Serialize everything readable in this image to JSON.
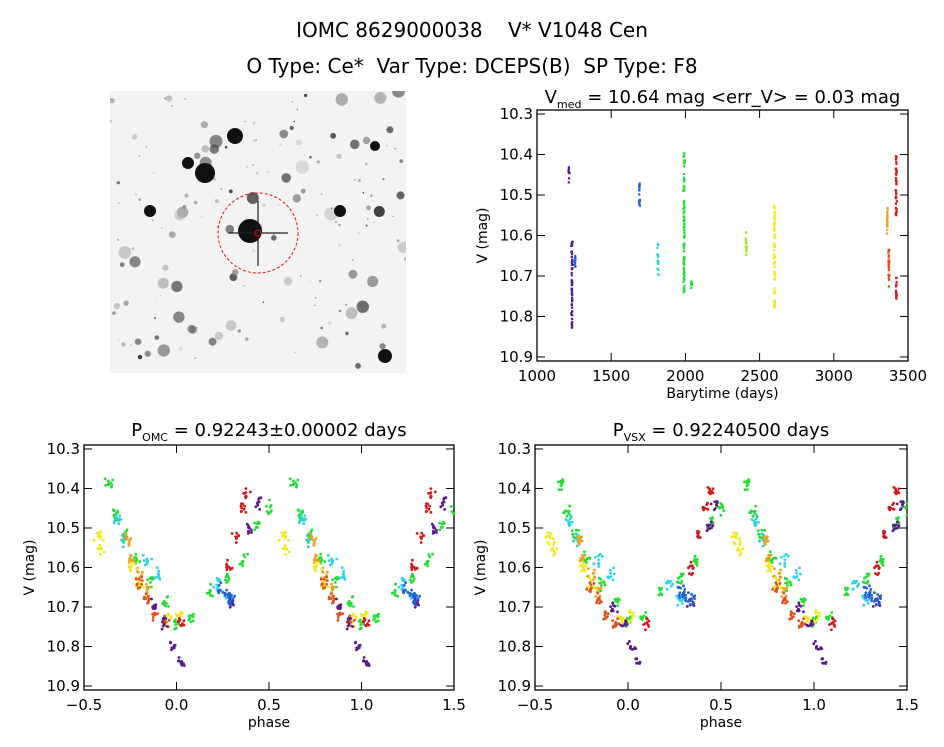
{
  "header": {
    "line1": "IOMC 8629000038    V* V1048 Cen",
    "line2": "O Type: Ce*  Var Type: DCEPS(B)  SP Type: F8"
  },
  "colors": {
    "purple": "#5a1a8c",
    "indigo": "#3a1fb0",
    "blue": "#1f5fd6",
    "cyan": "#2ad4e8",
    "green": "#22dd33",
    "yellowgreen": "#a8e62c",
    "yellow": "#f2e81c",
    "orange": "#f0a020",
    "redorange": "#e0501a",
    "red": "#d01a1a"
  },
  "chart_data": [
    {
      "type": "scatter",
      "title_main": "V",
      "title_sub": "med",
      "title_rest": " = 10.64 mag <err_V> = 0.03 mag",
      "xlabel": "Barytime (days)",
      "ylabel": "V (mag)",
      "xlim": [
        1000,
        3500
      ],
      "ylim": [
        10.91,
        10.29
      ],
      "xticks": [
        1000,
        1500,
        2000,
        2500,
        3000,
        3500
      ],
      "yticks": [
        10.3,
        10.4,
        10.5,
        10.6,
        10.7,
        10.8,
        10.9
      ],
      "series": [
        {
          "color": "purple",
          "x": 1215,
          "ymin": 10.43,
          "ymax": 10.47
        },
        {
          "color": "purple",
          "x": 1235,
          "ymin": 10.61,
          "ymax": 10.83
        },
        {
          "color": "blue",
          "x": 1255,
          "ymin": 10.64,
          "ymax": 10.68
        },
        {
          "color": "blue",
          "x": 1690,
          "ymin": 10.47,
          "ymax": 10.53
        },
        {
          "color": "cyan",
          "x": 1815,
          "ymin": 10.62,
          "ymax": 10.7
        },
        {
          "color": "green",
          "x": 1990,
          "ymin": 10.39,
          "ymax": 10.74
        },
        {
          "color": "green",
          "x": 2040,
          "ymin": 10.71,
          "ymax": 10.73
        },
        {
          "color": "yellowgreen",
          "x": 2410,
          "ymin": 10.59,
          "ymax": 10.65
        },
        {
          "color": "yellow",
          "x": 2600,
          "ymin": 10.52,
          "ymax": 10.78
        },
        {
          "color": "orange",
          "x": 3360,
          "ymin": 10.53,
          "ymax": 10.6
        },
        {
          "color": "redorange",
          "x": 3370,
          "ymin": 10.63,
          "ymax": 10.73
        },
        {
          "color": "red",
          "x": 3420,
          "ymin": 10.4,
          "ymax": 10.55
        },
        {
          "color": "red",
          "x": 3420,
          "ymin": 10.7,
          "ymax": 10.76
        }
      ]
    },
    {
      "type": "scatter",
      "title_main": "P",
      "title_sub": "OMC",
      "title_rest": " = 0.92243±0.00002 days",
      "xlabel": "phase",
      "ylabel": "V (mag)",
      "xlim": [
        -0.5,
        1.5
      ],
      "ylim": [
        10.91,
        10.29
      ],
      "xticks": [
        -0.5,
        0.0,
        0.5,
        1.0,
        1.5
      ],
      "xtick_labels": [
        "−0.5",
        "0.0",
        "0.5",
        "1.0",
        "1.5"
      ],
      "yticks": [
        10.3,
        10.4,
        10.5,
        10.6,
        10.7,
        10.8,
        10.9
      ],
      "light_curve": [
        {
          "color": "green",
          "points": [
            [
              -0.36,
              10.39
            ],
            [
              -0.33,
              10.46
            ],
            [
              -0.28,
              10.52
            ],
            [
              -0.22,
              10.58
            ],
            [
              -0.14,
              10.64
            ],
            [
              -0.06,
              10.69
            ],
            [
              0.0,
              10.74
            ],
            [
              0.08,
              10.73
            ],
            [
              0.18,
              10.66
            ],
            [
              0.28,
              10.63
            ],
            [
              0.36,
              10.58
            ],
            [
              0.44,
              10.49
            ],
            [
              0.5,
              10.45
            ]
          ]
        },
        {
          "color": "cyan",
          "points": [
            [
              -0.32,
              10.48
            ],
            [
              -0.28,
              10.53
            ],
            [
              -0.16,
              10.58
            ],
            [
              -0.1,
              10.62
            ],
            [
              0.22,
              10.64
            ],
            [
              0.28,
              10.68
            ]
          ]
        },
        {
          "color": "orange",
          "points": [
            [
              -0.26,
              10.53
            ],
            [
              -0.24,
              10.58
            ],
            [
              -0.2,
              10.62
            ],
            [
              -0.16,
              10.66
            ]
          ]
        },
        {
          "color": "yellow",
          "points": [
            [
              -0.42,
              10.52
            ],
            [
              -0.4,
              10.55
            ],
            [
              -0.24,
              10.6
            ],
            [
              -0.2,
              10.64
            ],
            [
              -0.04,
              10.73
            ],
            [
              0.02,
              10.72
            ]
          ]
        },
        {
          "color": "redorange",
          "points": [
            [
              -0.2,
              10.64
            ],
            [
              -0.16,
              10.68
            ],
            [
              -0.12,
              10.72
            ],
            [
              -0.06,
              10.74
            ]
          ]
        },
        {
          "color": "red",
          "points": [
            [
              0.28,
              10.6
            ],
            [
              0.32,
              10.52
            ],
            [
              0.36,
              10.45
            ],
            [
              0.38,
              10.41
            ],
            [
              0.02,
              10.74
            ]
          ]
        },
        {
          "color": "purple",
          "points": [
            [
              -0.12,
              10.7
            ],
            [
              -0.06,
              10.74
            ],
            [
              -0.02,
              10.8
            ],
            [
              0.02,
              10.84
            ],
            [
              0.4,
              10.5
            ],
            [
              0.44,
              10.44
            ],
            [
              0.3,
              10.69
            ]
          ]
        },
        {
          "color": "blue",
          "points": [
            [
              0.24,
              10.66
            ],
            [
              0.27,
              10.67
            ],
            [
              0.3,
              10.68
            ]
          ]
        }
      ]
    },
    {
      "type": "scatter",
      "title_main": "P",
      "title_sub": "VSX",
      "title_rest": " = 0.92240500 days",
      "xlabel": "phase",
      "ylabel": "V (mag)",
      "xlim": [
        -0.5,
        1.5
      ],
      "ylim": [
        10.91,
        10.29
      ],
      "xticks": [
        -0.5,
        0.0,
        0.5,
        1.0,
        1.5
      ],
      "xtick_labels": [
        "−0.5",
        "0.0",
        "0.5",
        "1.0",
        "1.5"
      ],
      "yticks": [
        10.3,
        10.4,
        10.5,
        10.6,
        10.7,
        10.8,
        10.9
      ],
      "light_curve": [
        {
          "color": "green",
          "points": [
            [
              -0.36,
              10.39
            ],
            [
              -0.33,
              10.46
            ],
            [
              -0.28,
              10.52
            ],
            [
              -0.22,
              10.58
            ],
            [
              -0.14,
              10.64
            ],
            [
              -0.06,
              10.69
            ],
            [
              0.0,
              10.74
            ],
            [
              0.08,
              10.73
            ],
            [
              0.18,
              10.66
            ],
            [
              0.28,
              10.63
            ],
            [
              0.36,
              10.58
            ],
            [
              0.44,
              10.49
            ],
            [
              0.5,
              10.45
            ]
          ]
        },
        {
          "color": "cyan",
          "points": [
            [
              -0.32,
              10.48
            ],
            [
              -0.28,
              10.53
            ],
            [
              -0.16,
              10.58
            ],
            [
              -0.1,
              10.62
            ],
            [
              0.22,
              10.64
            ],
            [
              0.28,
              10.68
            ]
          ]
        },
        {
          "color": "orange",
          "points": [
            [
              -0.26,
              10.53
            ],
            [
              -0.24,
              10.58
            ],
            [
              -0.2,
              10.62
            ],
            [
              -0.16,
              10.66
            ]
          ]
        },
        {
          "color": "yellow",
          "points": [
            [
              -0.42,
              10.52
            ],
            [
              -0.4,
              10.55
            ],
            [
              -0.24,
              10.6
            ],
            [
              -0.2,
              10.64
            ],
            [
              -0.04,
              10.73
            ],
            [
              0.02,
              10.72
            ]
          ]
        },
        {
          "color": "redorange",
          "points": [
            [
              -0.2,
              10.64
            ],
            [
              -0.16,
              10.68
            ],
            [
              -0.12,
              10.72
            ],
            [
              -0.06,
              10.74
            ]
          ]
        },
        {
          "color": "red",
          "points": [
            [
              0.34,
              10.6
            ],
            [
              0.38,
              10.52
            ],
            [
              0.42,
              10.45
            ],
            [
              0.44,
              10.41
            ],
            [
              0.1,
              10.74
            ]
          ]
        },
        {
          "color": "purple",
          "points": [
            [
              -0.08,
              10.7
            ],
            [
              -0.02,
              10.74
            ],
            [
              0.02,
              10.8
            ],
            [
              0.05,
              10.84
            ],
            [
              0.44,
              10.5
            ],
            [
              0.47,
              10.44
            ],
            [
              0.34,
              10.69
            ]
          ]
        },
        {
          "color": "blue",
          "points": [
            [
              0.28,
              10.66
            ],
            [
              0.31,
              10.67
            ],
            [
              0.34,
              10.68
            ]
          ]
        }
      ]
    }
  ]
}
